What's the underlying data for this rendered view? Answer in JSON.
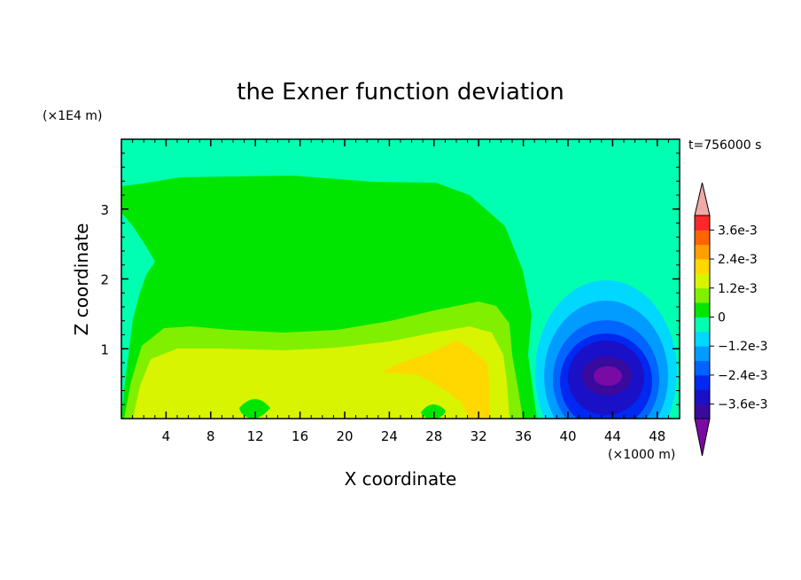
{
  "chart_data": {
    "type": "heatmap",
    "title": "the Exner function deviation",
    "xlabel": "X coordinate",
    "ylabel": "Z coordinate",
    "x_unit": "(×1000 m)",
    "y_unit": "(×1E4 m)",
    "time_label": "t=756000 s",
    "xlim": [
      0,
      50
    ],
    "ylim": [
      0,
      4
    ],
    "x_ticks": [
      4,
      8,
      12,
      16,
      20,
      24,
      28,
      32,
      36,
      40,
      44,
      48
    ],
    "x_tick_labels": [
      "4",
      "8",
      "12",
      "16",
      "20",
      "24",
      "28",
      "32",
      "36",
      "40",
      "44",
      "48"
    ],
    "y_ticks": [
      1,
      2,
      3
    ],
    "y_tick_labels": [
      "1",
      "2",
      "3"
    ],
    "colorbar": {
      "levels_from_bottom": [
        -0.0042,
        -0.0036,
        -0.003,
        -0.0024,
        -0.0018,
        -0.0012,
        -0.0006,
        0,
        0.0006,
        0.0012,
        0.0018,
        0.0024,
        0.003,
        0.0036,
        0.0042
      ],
      "colors_from_bottom": [
        "#7a0aa6",
        "#3a0a9e",
        "#1a10c8",
        "#0028f0",
        "#0064ff",
        "#009cff",
        "#00d8ff",
        "#00ffb0",
        "#00e600",
        "#80f000",
        "#d8f400",
        "#ffd800",
        "#ffa000",
        "#ff6400",
        "#ff2828",
        "#f0a8a8"
      ],
      "tick_values": [
        0.0036,
        0.0024,
        0.0012,
        0,
        -0.0012,
        -0.0024,
        -0.0036
      ],
      "tick_labels": [
        "3.6e-3",
        "2.4e-3",
        "1.2e-3",
        "0",
        "−1.2e-3",
        "−2.4e-3",
        "−3.6e-3"
      ],
      "extend": "both"
    },
    "fields": {
      "upper_domain": "-0.0003 to 0.0003",
      "low_level_positive_band": "about 0.0006 to 0.0018, x 1–36, z 0–1.6",
      "positive_maximum": "about 0.0018 near x 30, z 0.6",
      "negative_minimum": "about -0.0042 near x 43.5, z 0.6"
    }
  }
}
